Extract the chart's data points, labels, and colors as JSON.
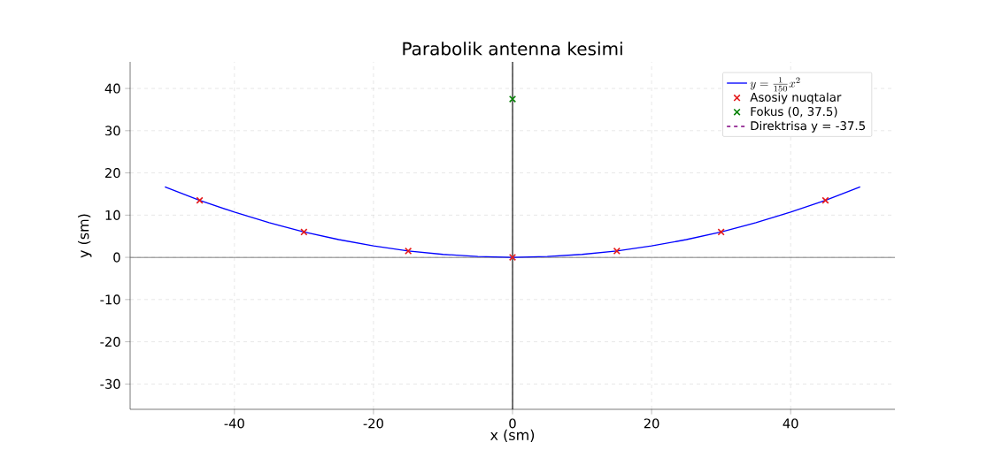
{
  "chart_data": {
    "type": "line",
    "title": "Parabolik antenna kesimi",
    "xlabel": "x (sm)",
    "ylabel": "y (sm)",
    "xlim": [
      -55,
      55
    ],
    "ylim": [
      -36,
      46.3
    ],
    "xticks": [
      -40,
      -20,
      0,
      20,
      40
    ],
    "yticks": [
      -30,
      -20,
      -10,
      0,
      10,
      20,
      30,
      40
    ],
    "grid": true,
    "legend": "top right",
    "ref_lines": [
      {
        "axis": "x",
        "value": 0,
        "color": "#000000"
      },
      {
        "axis": "y",
        "value": 0,
        "color": "#666666"
      }
    ],
    "series": [
      {
        "name": "y = \\frac{1}{150}x^2",
        "color": "#0000ff",
        "marker": "none",
        "line_style": "solid",
        "x": [
          -50,
          -45,
          -40,
          -35,
          -30,
          -25,
          -20,
          -15,
          -10,
          -5,
          0,
          5,
          10,
          15,
          20,
          25,
          30,
          35,
          40,
          45,
          50
        ],
        "values": [
          16.7,
          13.5,
          10.7,
          8.2,
          6,
          4.2,
          2.7,
          1.5,
          0.7,
          0.2,
          0,
          0.2,
          0.7,
          1.5,
          2.7,
          4.2,
          6,
          8.2,
          10.7,
          13.5,
          16.7
        ]
      },
      {
        "name": "Asosiy nuqtalar",
        "type": "scatter",
        "color": "#e41a1c",
        "marker": "cross",
        "x": [
          -45,
          -30,
          -15,
          0,
          15,
          30,
          45
        ],
        "values": [
          13.5,
          6,
          1.5,
          0,
          1.5,
          6,
          13.5
        ]
      },
      {
        "name": "Fokus (0, 37.5)",
        "type": "scatter",
        "color": "#008000",
        "marker": "cross",
        "x": [
          0
        ],
        "values": [
          37.5
        ]
      },
      {
        "name": "Direktrisa y = -37.5",
        "type": "line",
        "color": "#800080",
        "marker": "none",
        "line_style": "dashed"
      }
    ]
  }
}
